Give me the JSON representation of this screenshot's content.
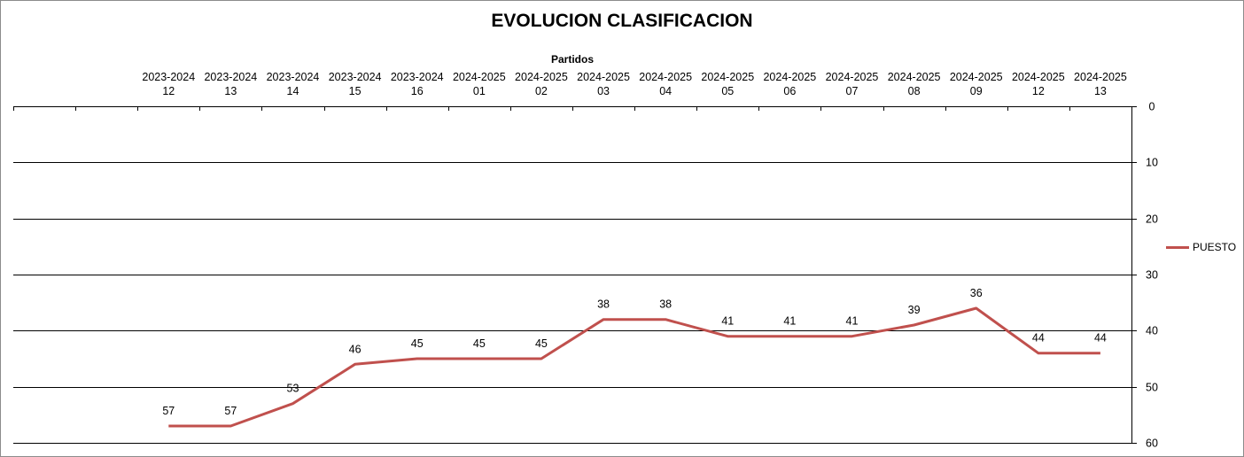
{
  "chart_data": {
    "type": "line",
    "title": "EVOLUCION CLASIFICACION",
    "xlabel": "Partidos",
    "ylabel": "",
    "y_inverted": true,
    "ylim": [
      0,
      60
    ],
    "yticks": [
      0,
      10,
      20,
      30,
      40,
      50,
      60
    ],
    "x_axis_position": "top",
    "y_axis_position": "right",
    "grid": "horizontal",
    "legend": "right",
    "categories": [
      [
        "",
        ""
      ],
      [
        "",
        ""
      ],
      [
        "2023-2024",
        "12"
      ],
      [
        "2023-2024",
        "13"
      ],
      [
        "2023-2024",
        "14"
      ],
      [
        "2023-2024",
        "15"
      ],
      [
        "2023-2024",
        "16"
      ],
      [
        "2024-2025",
        "01"
      ],
      [
        "2024-2025",
        "02"
      ],
      [
        "2024-2025",
        "03"
      ],
      [
        "2024-2025",
        "04"
      ],
      [
        "2024-2025",
        "05"
      ],
      [
        "2024-2025",
        "06"
      ],
      [
        "2024-2025",
        "07"
      ],
      [
        "2024-2025",
        "08"
      ],
      [
        "2024-2025",
        "09"
      ],
      [
        "2024-2025",
        "12"
      ],
      [
        "2024-2025",
        "13"
      ]
    ],
    "series": [
      {
        "name": "PUESTO",
        "color": "#c0504d",
        "values": [
          null,
          null,
          57,
          57,
          53,
          46,
          45,
          45,
          45,
          38,
          38,
          41,
          41,
          41,
          39,
          36,
          44,
          44
        ]
      }
    ]
  }
}
